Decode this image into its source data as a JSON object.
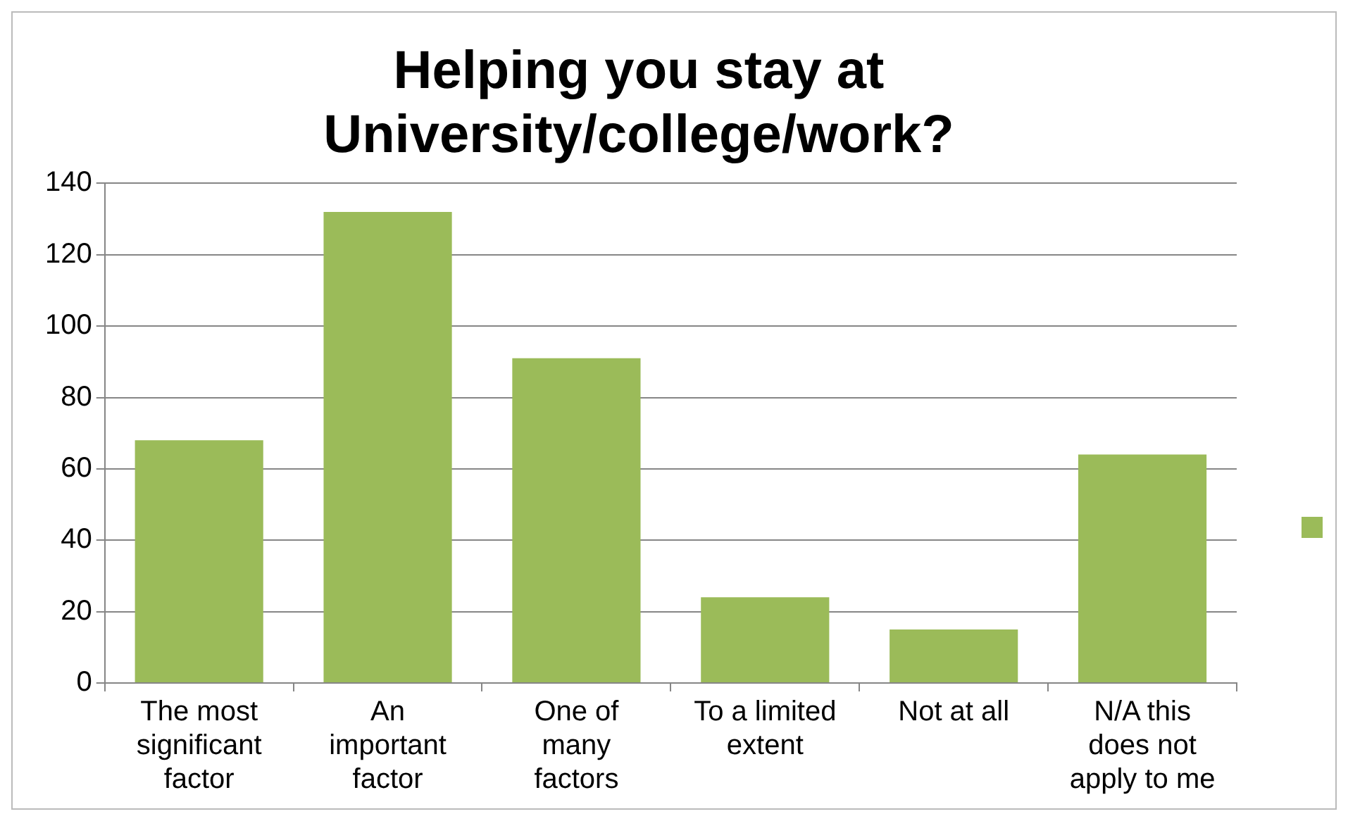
{
  "chart_data": {
    "type": "bar",
    "title": "Helping you stay at University/college/work?",
    "categories": [
      "The most significant factor",
      "An important factor",
      "One of many factors",
      "To a limited extent",
      "Not at all",
      "N/A this does not apply to me"
    ],
    "series": [
      {
        "color": "#9bbb59",
        "values": [
          68,
          132,
          91,
          24,
          15,
          64
        ]
      }
    ],
    "ylim": [
      0,
      140
    ],
    "yticks": [
      0,
      20,
      40,
      60,
      80,
      100,
      120,
      140
    ],
    "grid": "y"
  }
}
